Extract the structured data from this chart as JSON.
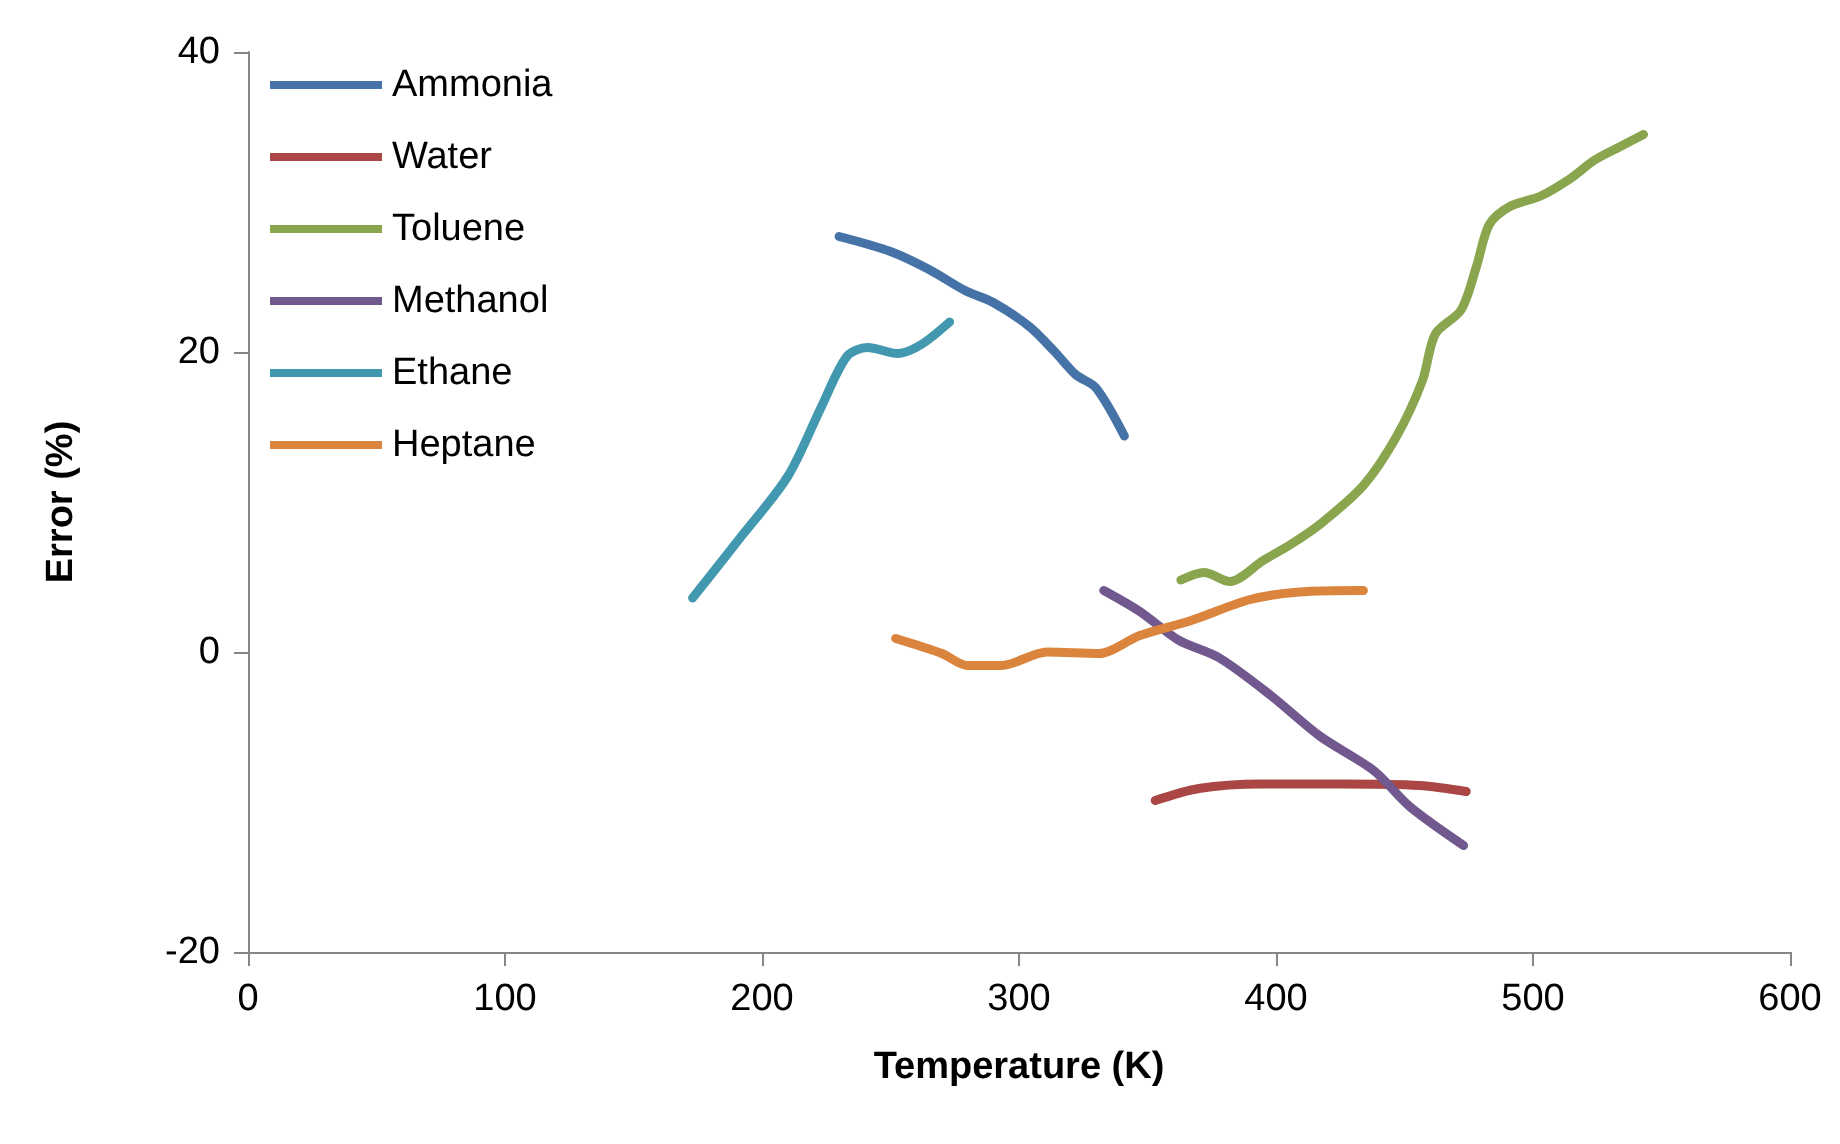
{
  "chart_data": {
    "type": "line",
    "xlabel": "Temperature (K)",
    "ylabel": "Error (%)",
    "xlim": [
      0,
      600
    ],
    "xticks": [
      0,
      100,
      200,
      300,
      400,
      500,
      600
    ],
    "ylim": [
      -20,
      40
    ],
    "yticks": [
      -20,
      0,
      20,
      40
    ],
    "grid": false,
    "legend": "top left",
    "marker": "none",
    "line_style": "solid",
    "series": [
      {
        "name": "Ammonia",
        "color": "#4572a7",
        "x": [
          230,
          250,
          265,
          279,
          290,
          304,
          314,
          322,
          330,
          341
        ],
        "values": [
          27.7,
          26.7,
          25.5,
          24.1,
          23.3,
          21.7,
          20,
          18.5,
          17.6,
          14.4
        ]
      },
      {
        "name": "Water",
        "color": "#aa4643",
        "x": [
          353,
          370,
          394,
          425,
          456,
          474
        ],
        "values": [
          -9.9,
          -9.1,
          -8.8,
          -8.8,
          -8.9,
          -9.3
        ]
      },
      {
        "name": "Toluene",
        "color": "#89a54e",
        "x": [
          363,
          372,
          382,
          395,
          406,
          417,
          434,
          447,
          457,
          462,
          472,
          478,
          483,
          491,
          503,
          514,
          524,
          534,
          543
        ],
        "values": [
          4.8,
          5.3,
          4.7,
          6.1,
          7.2,
          8.5,
          11.1,
          14.4,
          18.1,
          21.2,
          22.8,
          25.7,
          28.5,
          29.7,
          30.4,
          31.5,
          32.8,
          33.7,
          34.5
        ]
      },
      {
        "name": "Methanol",
        "color": "#71588f",
        "x": [
          333,
          347,
          362,
          378,
          398,
          417,
          438,
          452,
          473
        ],
        "values": [
          4.1,
          2.7,
          0.8,
          -0.4,
          -2.9,
          -5.6,
          -7.9,
          -10.3,
          -12.9
        ]
      },
      {
        "name": "Ethane",
        "color": "#4198af",
        "x": [
          173,
          191,
          210,
          223,
          233,
          241,
          253,
          262,
          273
        ],
        "values": [
          3.6,
          7.5,
          11.7,
          16.3,
          19.7,
          20.3,
          19.9,
          20.5,
          22
        ]
      },
      {
        "name": "Heptane",
        "color": "#db843d",
        "x": [
          252,
          270,
          280,
          293,
          311,
          331,
          347,
          367,
          390,
          409,
          434
        ],
        "values": [
          0.9,
          -0.1,
          -0.9,
          -0.9,
          0,
          -0.1,
          1.1,
          2.1,
          3.5,
          4,
          4.1
        ]
      }
    ]
  }
}
